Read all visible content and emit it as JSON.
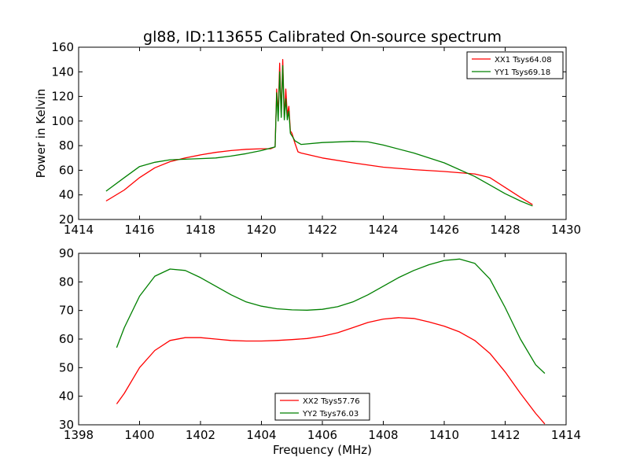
{
  "chart_data": [
    {
      "type": "line",
      "title": "gl88, ID:113655 Calibrated On-source spectrum",
      "xlabel": "",
      "ylabel": "Power in Kelvin",
      "xlim": [
        1414,
        1430
      ],
      "ylim": [
        20,
        160
      ],
      "xticks": [
        "1414",
        "1416",
        "1418",
        "1420",
        "1422",
        "1424",
        "1426",
        "1428",
        "1430"
      ],
      "yticks": [
        "20",
        "40",
        "60",
        "80",
        "100",
        "120",
        "140",
        "160"
      ],
      "legend_position": "upper right",
      "series": [
        {
          "name": "XX1 Tsys64.08",
          "color": "#ff0000",
          "x": [
            1414.9,
            1415.5,
            1416,
            1416.5,
            1417,
            1417.5,
            1418,
            1418.5,
            1419,
            1419.5,
            1420,
            1420.3,
            1420.45,
            1420.5,
            1420.55,
            1420.6,
            1420.65,
            1420.7,
            1420.75,
            1420.8,
            1420.85,
            1420.9,
            1420.95,
            1421.0,
            1421.1,
            1421.2,
            1421.3,
            1422,
            1423,
            1424,
            1425,
            1426,
            1427,
            1427.5,
            1428,
            1428.5,
            1428.9
          ],
          "y": [
            35,
            44,
            54,
            62,
            67,
            70,
            72.5,
            74.5,
            76,
            77,
            77.5,
            77.5,
            79,
            126,
            105,
            147,
            105,
            150,
            103,
            126,
            105,
            112,
            92,
            90,
            82,
            75,
            74,
            70,
            66,
            62.5,
            60.5,
            59,
            57,
            54,
            46,
            38,
            32
          ]
        },
        {
          "name": "YY1 Tsys69.18",
          "color": "#008000",
          "x": [
            1414.9,
            1415.5,
            1416,
            1416.5,
            1417,
            1417.5,
            1418,
            1418.5,
            1419,
            1419.5,
            1420,
            1420.3,
            1420.45,
            1420.5,
            1420.55,
            1420.6,
            1420.65,
            1420.7,
            1420.75,
            1420.8,
            1420.85,
            1420.9,
            1420.95,
            1421.0,
            1421.1,
            1421.3,
            1422,
            1423,
            1423.5,
            1424,
            1425,
            1426,
            1427,
            1427.5,
            1428,
            1428.5,
            1428.9
          ],
          "y": [
            43,
            54,
            63,
            66.5,
            68.5,
            69,
            69.5,
            70,
            71.5,
            73.5,
            76,
            78,
            79,
            123,
            100,
            140,
            103,
            145,
            101,
            118,
            101,
            108,
            90,
            88,
            84,
            81,
            82.5,
            83.5,
            83,
            80.5,
            74,
            66,
            55,
            48,
            41,
            35,
            31
          ]
        }
      ]
    },
    {
      "type": "line",
      "title": "",
      "xlabel": "Frequency (MHz)",
      "ylabel": "",
      "xlim": [
        1398,
        1414
      ],
      "ylim": [
        30,
        90
      ],
      "xticks": [
        "1398",
        "1400",
        "1402",
        "1404",
        "1406",
        "1408",
        "1410",
        "1412",
        "1414"
      ],
      "yticks": [
        "30",
        "40",
        "50",
        "60",
        "70",
        "80",
        "90"
      ],
      "legend_position": "lower center",
      "series": [
        {
          "name": "XX2 Tsys57.76",
          "color": "#ff0000",
          "x": [
            1399.25,
            1399.5,
            1400,
            1400.5,
            1401,
            1401.5,
            1402,
            1402.5,
            1403,
            1403.5,
            1404,
            1404.5,
            1405,
            1405.5,
            1406,
            1406.5,
            1407,
            1407.5,
            1408,
            1408.5,
            1409,
            1409.5,
            1410,
            1410.5,
            1411,
            1411.5,
            1412,
            1412.5,
            1413,
            1413.3
          ],
          "y": [
            37.3,
            41,
            50,
            56,
            59.5,
            60.5,
            60.5,
            60,
            59.5,
            59.3,
            59.3,
            59.5,
            59.8,
            60.2,
            61,
            62.2,
            64,
            65.8,
            67,
            67.5,
            67.2,
            66,
            64.5,
            62.5,
            59.5,
            55,
            48.5,
            41,
            34,
            30.3
          ]
        },
        {
          "name": "YY2 Tsys76.03",
          "color": "#008000",
          "x": [
            1399.25,
            1399.5,
            1400,
            1400.5,
            1401,
            1401.5,
            1402,
            1402.5,
            1403,
            1403.5,
            1404,
            1404.5,
            1405,
            1405.5,
            1406,
            1406.5,
            1407,
            1407.5,
            1408,
            1408.5,
            1409,
            1409.5,
            1410,
            1410.5,
            1411,
            1411.5,
            1412,
            1412.5,
            1413,
            1413.3
          ],
          "y": [
            57,
            64,
            75,
            82,
            84.5,
            84,
            81.5,
            78.5,
            75.5,
            73,
            71.5,
            70.6,
            70.2,
            70.1,
            70.4,
            71.3,
            73,
            75.5,
            78.5,
            81.5,
            84,
            86,
            87.5,
            88,
            86.5,
            81,
            71,
            60,
            51,
            48
          ]
        }
      ]
    }
  ]
}
